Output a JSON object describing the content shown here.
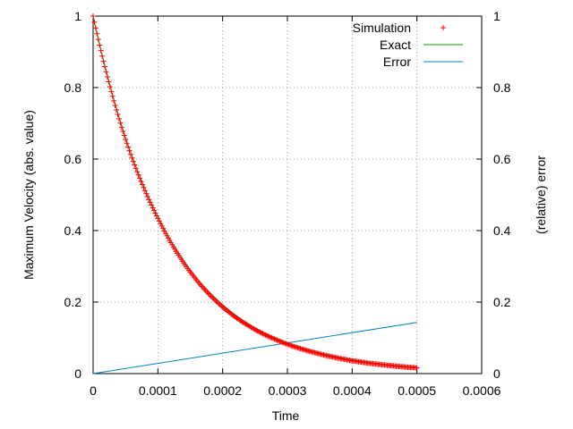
{
  "chart_data": {
    "type": "line",
    "title": "",
    "xlabel": "Time",
    "ylabel": "Maximum Velocity (abs. value)",
    "y2label": "(relative) error",
    "xlim": [
      0,
      0.0006
    ],
    "ylim": [
      0,
      1
    ],
    "y2lim": [
      0,
      1
    ],
    "xticks": [
      0,
      0.0001,
      0.0002,
      0.0003,
      0.0004,
      0.0005,
      0.0006
    ],
    "xtick_labels": [
      "0",
      "0.0001",
      "0.0002",
      "0.0003",
      "0.0004",
      "0.0005",
      "0.0006"
    ],
    "yticks": [
      0,
      0.2,
      0.4,
      0.6,
      0.8,
      1
    ],
    "ytick_labels": [
      "0",
      "0.2",
      "0.4",
      "0.6",
      "0.8",
      "1"
    ],
    "y2ticks": [
      0,
      0.2,
      0.4,
      0.6,
      0.8,
      1
    ],
    "y2tick_labels": [
      "0",
      "0.2",
      "0.4",
      "0.6",
      "0.8",
      "1"
    ],
    "grid": true,
    "legend_position": "top-right",
    "series": [
      {
        "name": "Simulation",
        "style": "points",
        "marker": "+",
        "color": "#ff0000",
        "axis": "y1",
        "x": [
          0,
          5e-05,
          0.0001,
          0.00015,
          0.0002,
          0.00025,
          0.0003,
          0.00035,
          0.0004,
          0.00045,
          0.0005
        ],
        "y": [
          1.0,
          0.655,
          0.434,
          0.284,
          0.186,
          0.123,
          0.082,
          0.055,
          0.036,
          0.024,
          0.016
        ]
      },
      {
        "name": "Exact",
        "style": "line",
        "color": "#00a000",
        "axis": "y1",
        "x": [
          0,
          5e-05,
          0.0001,
          0.00015,
          0.0002,
          0.00025,
          0.0003,
          0.00035,
          0.0004,
          0.00045,
          0.0005
        ],
        "y": [
          1.0,
          0.66,
          0.44,
          0.29,
          0.193,
          0.128,
          0.086,
          0.058,
          0.039,
          0.026,
          0.018
        ]
      },
      {
        "name": "Error",
        "style": "line",
        "color": "#0080c0",
        "axis": "y2",
        "x": [
          0,
          0.0005
        ],
        "y": [
          0,
          0.143
        ]
      }
    ]
  }
}
